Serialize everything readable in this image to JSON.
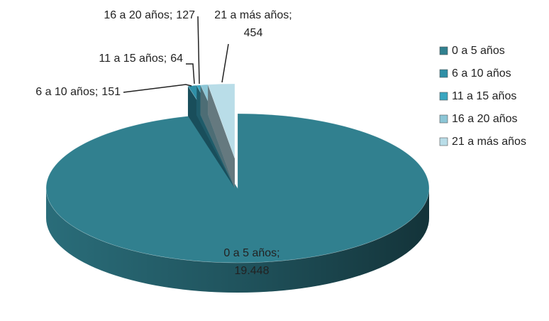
{
  "chart_data": {
    "type": "pie3d",
    "categories": [
      "0 a 5 años",
      "6 a 10 años",
      "11 a 15 años",
      "16 a 20 años",
      "21 a más años"
    ],
    "values": [
      19448,
      151,
      64,
      127,
      454
    ],
    "value_labels": [
      "19.448",
      "151",
      "64",
      "127",
      "454"
    ],
    "label_separator": ";",
    "colors": [
      "#31808f",
      "#2f8fa6",
      "#3aa6c0",
      "#8cc6d6",
      "#b9dde8"
    ],
    "legend": "right"
  }
}
